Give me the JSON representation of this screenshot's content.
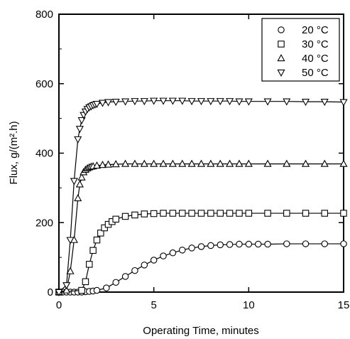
{
  "chart_data": {
    "type": "scatter",
    "xlabel": "Operating Time, minutes",
    "ylabel": "Flux, g/(m².h)",
    "xlim": [
      0,
      15
    ],
    "ylim": [
      0,
      800
    ],
    "xticks": [
      0,
      5,
      10,
      15
    ],
    "yticks": [
      0,
      200,
      400,
      600,
      800
    ],
    "grid": false,
    "legend_position": "top-right",
    "marker_color": "#000000",
    "series": [
      {
        "name": "20 °C",
        "marker": "circle",
        "x": [
          0,
          0.2,
          0.4,
          0.6,
          0.8,
          1.0,
          1.2,
          1.4,
          1.6,
          1.8,
          2.0,
          2.5,
          3.0,
          3.5,
          4.0,
          4.5,
          5.0,
          5.5,
          6.0,
          6.5,
          7.0,
          7.5,
          8.0,
          8.5,
          9.0,
          9.5,
          10.0,
          10.5,
          11.0,
          12.0,
          13.0,
          14.0,
          15.0
        ],
        "y": [
          0,
          0,
          0,
          0,
          0,
          0,
          0,
          1,
          2,
          3,
          5,
          12,
          28,
          45,
          62,
          78,
          92,
          104,
          113,
          121,
          127,
          131,
          134,
          136,
          137,
          138,
          138,
          138,
          138,
          139,
          139,
          139,
          139
        ]
      },
      {
        "name": "30 °C",
        "marker": "square",
        "x": [
          0,
          1.2,
          1.4,
          1.6,
          1.8,
          2.0,
          2.2,
          2.4,
          2.6,
          2.8,
          3.0,
          3.5,
          4.0,
          4.5,
          5.0,
          5.5,
          6.0,
          6.5,
          7.0,
          7.5,
          8.0,
          8.5,
          9.0,
          9.5,
          10.0,
          11.0,
          12.0,
          13.0,
          14.0,
          15.0
        ],
        "y": [
          0,
          5,
          30,
          80,
          120,
          150,
          170,
          185,
          195,
          203,
          210,
          218,
          222,
          225,
          226,
          227,
          227,
          227,
          227,
          227,
          227,
          227,
          227,
          227,
          227,
          227,
          227,
          227,
          227,
          227
        ]
      },
      {
        "name": "40 °C",
        "marker": "triangle-up",
        "x": [
          0,
          0.4,
          0.6,
          0.8,
          1.0,
          1.1,
          1.2,
          1.3,
          1.4,
          1.5,
          1.6,
          1.7,
          1.8,
          2.0,
          2.3,
          2.6,
          3.0,
          3.5,
          4.0,
          4.5,
          5.0,
          5.5,
          6.0,
          6.5,
          7.0,
          7.5,
          8.0,
          8.5,
          9.0,
          9.5,
          10.0,
          11.0,
          12.0,
          13.0,
          14.0,
          15.0
        ],
        "y": [
          0,
          5,
          60,
          150,
          270,
          310,
          330,
          345,
          352,
          356,
          359,
          361,
          362,
          364,
          366,
          367,
          368,
          369,
          369,
          369,
          369,
          369,
          369,
          369,
          369,
          369,
          369,
          369,
          369,
          369,
          369,
          369,
          369,
          369,
          369,
          369
        ]
      },
      {
        "name": "50 °C",
        "marker": "triangle-down",
        "x": [
          0,
          0.4,
          0.6,
          0.8,
          1.0,
          1.1,
          1.2,
          1.3,
          1.4,
          1.5,
          1.6,
          1.7,
          1.8,
          1.9,
          2.0,
          2.3,
          2.6,
          3.0,
          3.5,
          4.0,
          4.5,
          5.0,
          5.5,
          6.0,
          6.5,
          7.0,
          7.5,
          8.0,
          8.5,
          9.0,
          9.5,
          10.0,
          11.0,
          12.0,
          13.0,
          14.0,
          15.0
        ],
        "y": [
          0,
          20,
          150,
          320,
          440,
          470,
          495,
          510,
          520,
          527,
          532,
          535,
          538,
          540,
          542,
          545,
          547,
          548,
          549,
          550,
          550,
          551,
          551,
          551,
          551,
          550,
          550,
          550,
          550,
          550,
          549,
          549,
          549,
          549,
          548,
          548,
          547
        ]
      }
    ]
  }
}
